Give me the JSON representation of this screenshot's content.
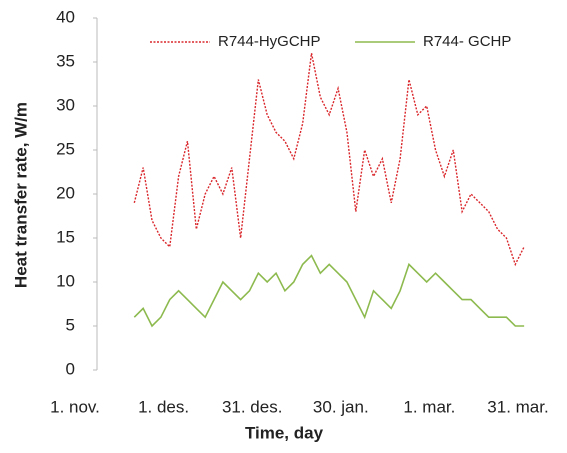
{
  "chart_data": {
    "type": "line",
    "x_label": "Time, day",
    "y_label": "Heat transfer rate, W/m",
    "x": [
      15,
      18,
      21,
      24,
      27,
      30,
      33,
      36,
      39,
      42,
      45,
      48,
      51,
      54,
      57,
      60,
      63,
      66,
      69,
      72,
      75,
      78,
      81,
      84,
      87,
      90,
      93,
      96,
      99,
      102,
      105,
      108,
      111,
      114,
      117,
      120,
      123,
      126,
      129,
      132,
      135,
      138,
      141,
      144,
      147
    ],
    "series": [
      {
        "name": "R744-HyGCHP",
        "color": "#d9262b",
        "dash": true,
        "values": [
          19,
          23,
          17,
          15,
          14,
          22,
          26,
          16,
          20,
          22,
          20,
          23,
          15,
          24,
          33,
          29,
          27,
          26,
          24,
          28,
          36,
          31,
          29,
          32,
          27,
          18,
          25,
          22,
          24,
          19,
          24,
          33,
          29,
          30,
          25,
          22,
          25,
          18,
          20,
          19,
          18,
          16,
          15,
          12,
          14
        ]
      },
      {
        "name": "R744- GCHP",
        "color": "#8dba4f",
        "dash": false,
        "values": [
          6,
          7,
          5,
          6,
          8,
          9,
          8,
          7,
          6,
          8,
          10,
          9,
          8,
          9,
          11,
          10,
          11,
          9,
          10,
          12,
          13,
          11,
          12,
          11,
          10,
          8,
          6,
          9,
          8,
          7,
          9,
          12,
          11,
          10,
          11,
          10,
          9,
          8,
          8,
          7,
          6,
          6,
          6,
          5,
          5
        ]
      }
    ],
    "xlim": [
      0,
      150
    ],
    "xticks": [
      {
        "value": 0,
        "label": "1. nov."
      },
      {
        "value": 30,
        "label": "1. des."
      },
      {
        "value": 60,
        "label": "31. des."
      },
      {
        "value": 90,
        "label": "30. jan."
      },
      {
        "value": 120,
        "label": "1. mar."
      },
      {
        "value": 150,
        "label": "31. mar."
      }
    ],
    "ylim": [
      0,
      40
    ],
    "yticks": [
      0,
      5,
      10,
      15,
      20,
      25,
      30,
      35,
      40
    ],
    "grid": false,
    "legend": "top"
  }
}
